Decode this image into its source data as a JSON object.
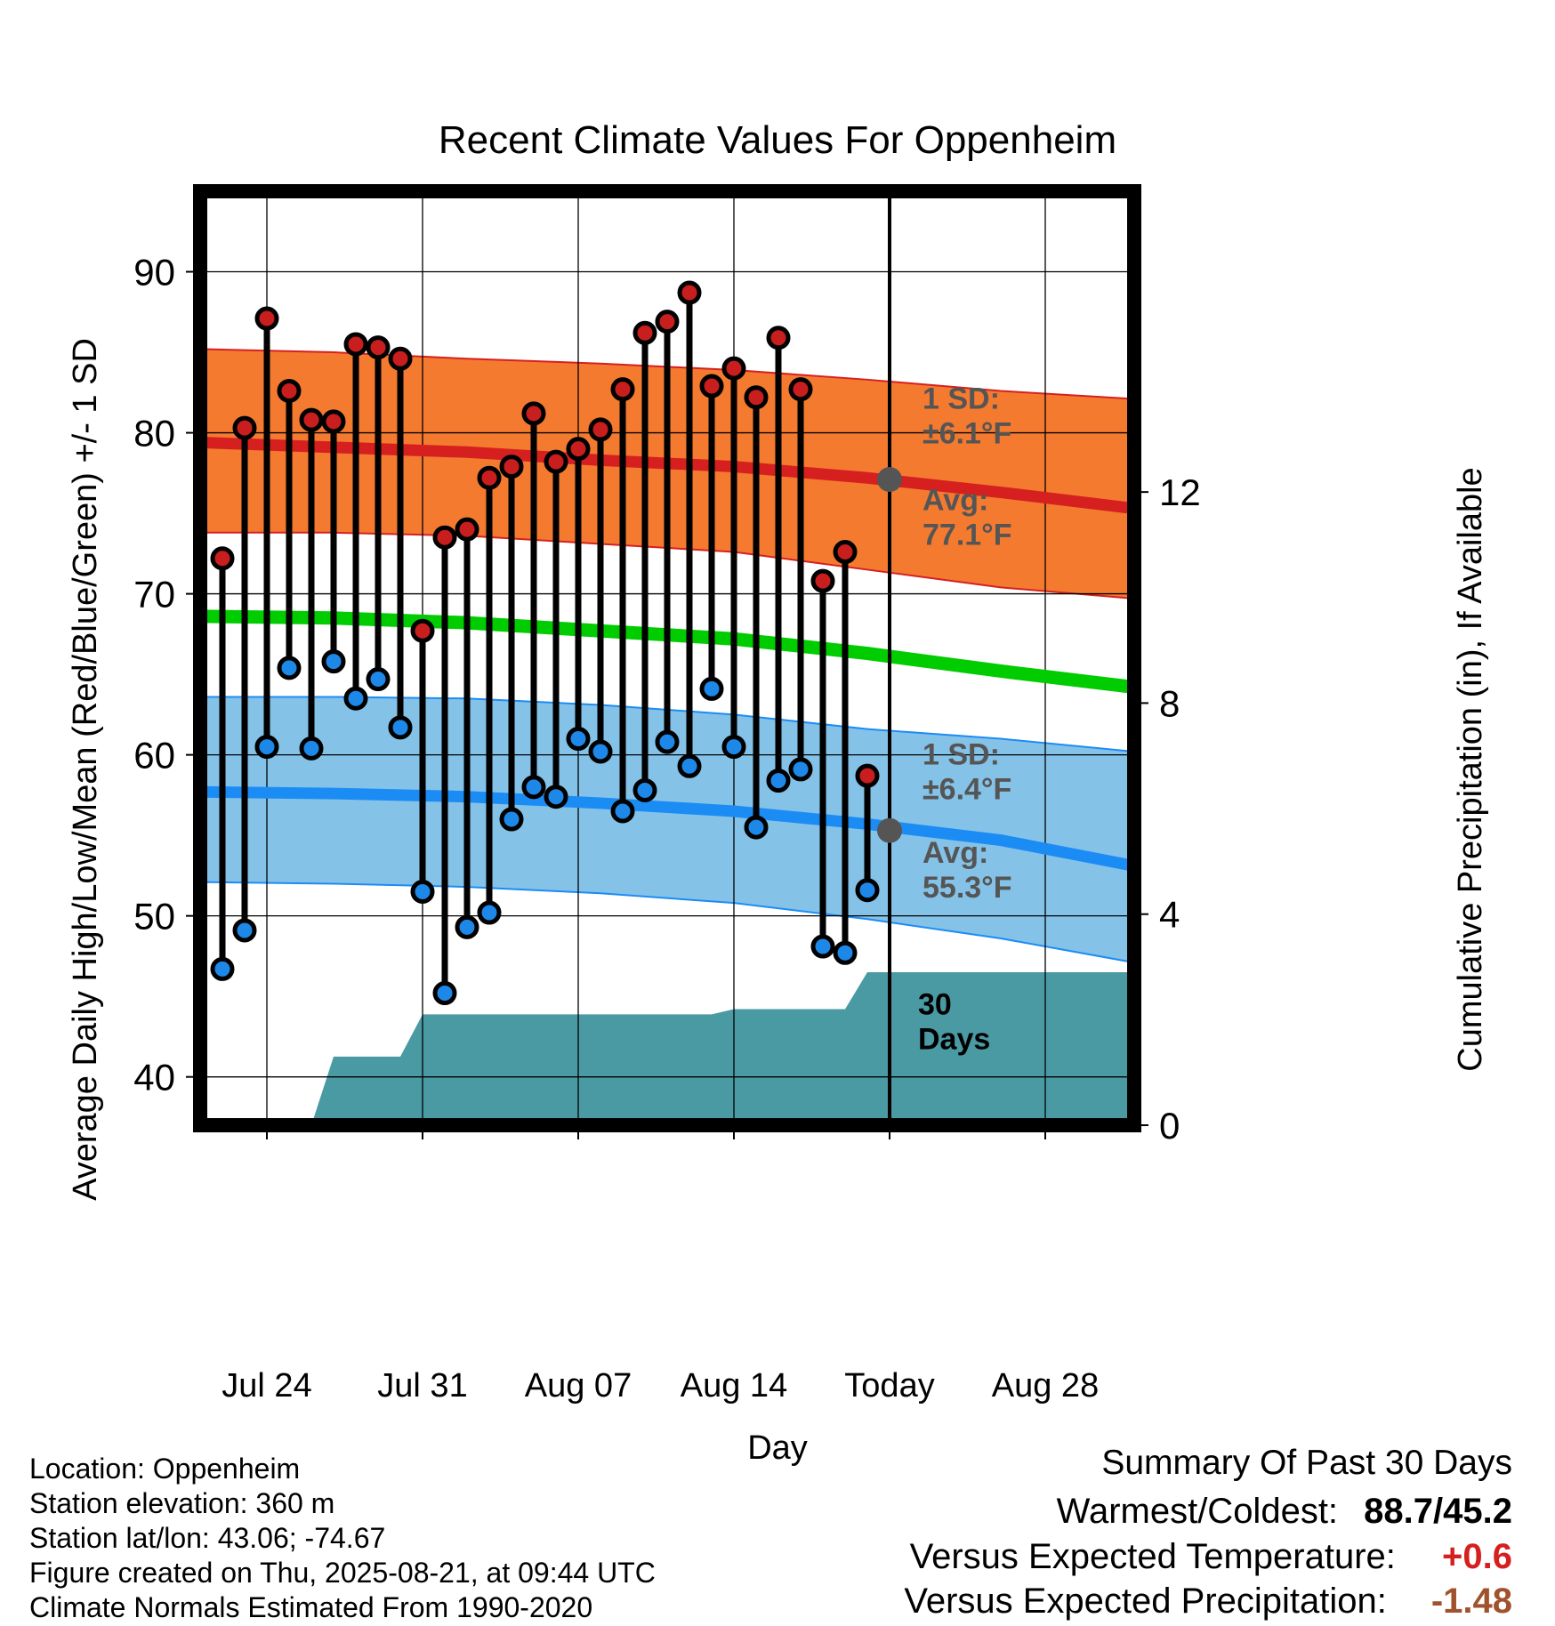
{
  "chart_data": {
    "type": "line",
    "title": "Recent Climate Values For Oppenheim",
    "xlabel": "Day",
    "ylabel": "Average Daily High/Low/Mean (Red/Blue/Green) +/- 1 SD",
    "y2label": "Cumulative Precipitation (in), If Available",
    "ylim": [
      37,
      95
    ],
    "y2lim": [
      0,
      17.7
    ],
    "yticks": [
      "40",
      "50",
      "60",
      "70",
      "80",
      "90"
    ],
    "y2ticks": [
      "0",
      "4",
      "8",
      "12"
    ],
    "x_dates": [
      "Jul 21",
      "Jul 22",
      "Jul 23",
      "Jul 24",
      "Jul 25",
      "Jul 26",
      "Jul 27",
      "Jul 28",
      "Jul 29",
      "Jul 30",
      "Jul 31",
      "Aug 01",
      "Aug 02",
      "Aug 03",
      "Aug 04",
      "Aug 05",
      "Aug 06",
      "Aug 07",
      "Aug 08",
      "Aug 09",
      "Aug 10",
      "Aug 11",
      "Aug 12",
      "Aug 13",
      "Aug 14",
      "Aug 15",
      "Aug 16",
      "Aug 17",
      "Aug 18",
      "Aug 19",
      "Aug 20",
      "Aug 21",
      "Aug 22",
      "Aug 23",
      "Aug 24",
      "Aug 25",
      "Aug 26",
      "Aug 27",
      "Aug 28",
      "Aug 29",
      "Aug 30",
      "Aug 31",
      "Sep 01"
    ],
    "xticks": [
      {
        "date": "Jul 24",
        "label": "Jul 24"
      },
      {
        "date": "Jul 31",
        "label": "Jul 31"
      },
      {
        "date": "Aug 07",
        "label": "Aug 07"
      },
      {
        "date": "Aug 14",
        "label": "Aug 14"
      },
      {
        "date": "Aug 21",
        "label": "Today"
      },
      {
        "date": "Aug 28",
        "label": "Aug 28"
      }
    ],
    "today": "Aug 21",
    "observed_dates": [
      "Jul 22",
      "Jul 23",
      "Jul 24",
      "Jul 25",
      "Jul 26",
      "Jul 27",
      "Jul 28",
      "Jul 29",
      "Jul 30",
      "Jul 31",
      "Aug 01",
      "Aug 02",
      "Aug 03",
      "Aug 04",
      "Aug 05",
      "Aug 06",
      "Aug 07",
      "Aug 08",
      "Aug 09",
      "Aug 10",
      "Aug 11",
      "Aug 12",
      "Aug 13",
      "Aug 14",
      "Aug 15",
      "Aug 16",
      "Aug 17",
      "Aug 18",
      "Aug 19",
      "Aug 20"
    ],
    "series": [
      {
        "name": "Daily High",
        "values": [
          72.2,
          80.3,
          87.1,
          82.6,
          80.8,
          80.7,
          85.5,
          85.3,
          84.6,
          67.7,
          73.5,
          74.0,
          77.2,
          77.9,
          81.2,
          78.2,
          79.0,
          80.2,
          82.7,
          86.2,
          86.9,
          88.7,
          82.9,
          84.0,
          82.2,
          85.9,
          82.7,
          70.8,
          72.6,
          58.7
        ]
      },
      {
        "name": "Daily Low",
        "values": [
          46.7,
          49.1,
          60.5,
          65.4,
          60.4,
          65.8,
          63.5,
          64.7,
          61.7,
          51.5,
          45.2,
          49.3,
          50.2,
          56.0,
          58.0,
          57.4,
          61.0,
          60.2,
          56.5,
          57.8,
          60.8,
          59.3,
          64.1,
          60.5,
          55.5,
          58.4,
          59.1,
          48.1,
          47.7,
          51.6
        ]
      },
      {
        "name": "Precipitation",
        "dates": [
          "Jul 21",
          "Jul 26",
          "Jul 27",
          "Jul 28",
          "Jul 29",
          "Jul 30",
          "Jul 31",
          "Aug 01",
          "Aug 02",
          "Aug 03",
          "Aug 04",
          "Aug 05",
          "Aug 06",
          "Aug 07",
          "Aug 08",
          "Aug 09",
          "Aug 10",
          "Aug 11",
          "Aug 12",
          "Aug 13",
          "Aug 14",
          "Aug 15",
          "Aug 16",
          "Aug 17",
          "Aug 18",
          "Aug 19",
          "Aug 20",
          "Aug 21",
          "Sep 01"
        ],
        "values": [
          0,
          0,
          1.3,
          1.3,
          1.3,
          1.3,
          2.1,
          2.1,
          2.1,
          2.1,
          2.1,
          2.1,
          2.1,
          2.1,
          2.1,
          2.1,
          2.1,
          2.1,
          2.1,
          2.1,
          2.2,
          2.2,
          2.2,
          2.2,
          2.2,
          2.2,
          2.9,
          2.9,
          2.9
        ]
      }
    ],
    "normals_dates": [
      "Jul 21",
      "Jul 27",
      "Aug 02",
      "Aug 08",
      "Aug 14",
      "Aug 20",
      "Aug 26",
      "Sep 01"
    ],
    "high_band": {
      "mean": [
        79.4,
        79.1,
        78.8,
        78.3,
        77.9,
        77.2,
        76.3,
        75.3
      ],
      "upper": [
        85.2,
        85.0,
        84.6,
        84.3,
        83.9,
        83.3,
        82.6,
        82.1
      ],
      "lower": [
        73.8,
        73.8,
        73.6,
        73.1,
        72.6,
        71.5,
        70.4,
        69.7
      ]
    },
    "low_band": {
      "mean": [
        57.7,
        57.6,
        57.4,
        57.0,
        56.5,
        55.7,
        54.7,
        53.1
      ],
      "upper": [
        63.6,
        63.6,
        63.5,
        63.1,
        62.5,
        61.6,
        61.0,
        60.2
      ],
      "lower": [
        52.1,
        52.0,
        51.8,
        51.4,
        50.8,
        49.8,
        48.6,
        47.1
      ]
    },
    "mean_normal": {
      "values": [
        68.6,
        68.5,
        68.2,
        67.7,
        67.2,
        66.3,
        65.2,
        64.2
      ]
    },
    "annotations": {
      "high_sd": "1 SD:\n±6.1°F",
      "high_avg": {
        "label": "Avg:\n77.1°F",
        "value": 77.1
      },
      "low_sd": "1 SD:\n±6.4°F",
      "low_avg": {
        "label": "Avg:\n55.3°F",
        "value": 55.3
      },
      "period": "30\nDays"
    },
    "colors": {
      "high_band": "#F47A30",
      "high_mean": "#D62020",
      "low_band": "#85C2E8",
      "low_mean": "#1C8CF5",
      "mean_line": "#00CC00",
      "precip": "#4A9AA4",
      "high_marker": "#C81E1E",
      "low_marker": "#1E88E8",
      "annotation": "#555555",
      "today_marker": "#555555"
    }
  },
  "info": {
    "location": "Location: Oppenheim",
    "elevation": "Station elevation: 360 m",
    "latlon": "Station lat/lon: 43.06; -74.67",
    "created": "Figure created on Thu, 2025-08-21, at 09:44 UTC",
    "normals": "Climate Normals Estimated From 1990-2020"
  },
  "summary": {
    "title": "Summary Of Past 30 Days",
    "warmest_label": "Warmest/Coldest:",
    "warmest_value": "88.7/45.2",
    "temp_label": "Versus Expected Temperature:",
    "temp_value": "+0.6",
    "temp_color": "#D62020",
    "precip_label": "Versus Expected Precipitation:",
    "precip_value": "-1.48",
    "precip_color": "#A0522D"
  }
}
